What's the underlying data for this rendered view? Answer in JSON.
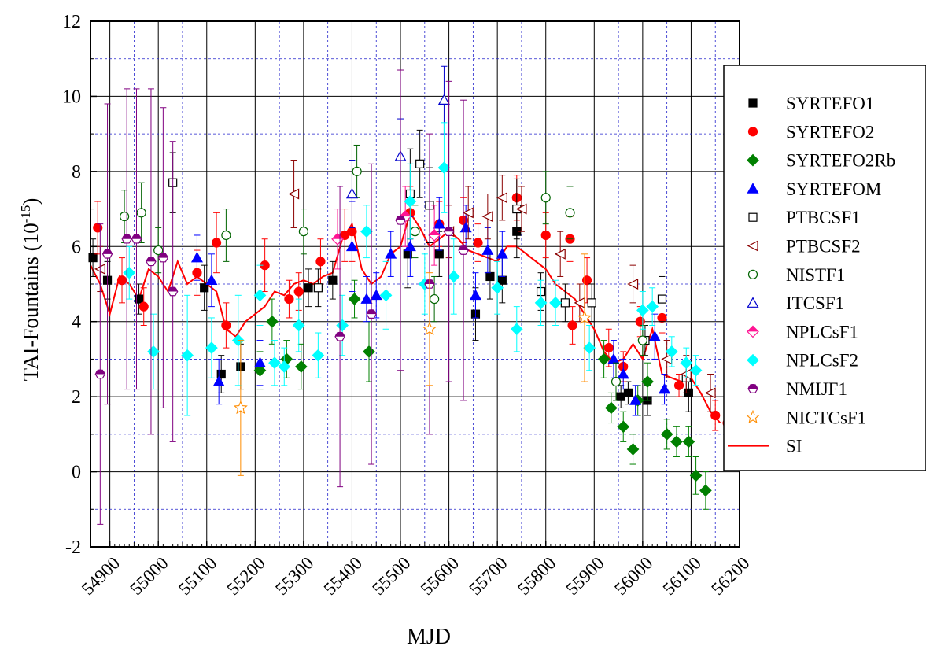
{
  "chart_data": {
    "type": "scatter",
    "xlabel": "MJD",
    "ylabel_main": "TAI-Fountains (10",
    "ylabel_exp": "-15",
    "ylabel_close": ")",
    "xlim": [
      54860,
      56200
    ],
    "ylim": [
      -2,
      12
    ],
    "x_major_ticks": [
      54900,
      55000,
      55100,
      55200,
      55300,
      55400,
      55500,
      55600,
      55700,
      55800,
      55900,
      56000,
      56100,
      56200
    ],
    "x_tick_labels": [
      "54900",
      "55000",
      "55100",
      "55200",
      "55300",
      "55400",
      "55500",
      "55600",
      "55700",
      "55800",
      "55900",
      "56000",
      "56100",
      "56200"
    ],
    "y_major_ticks": [
      -2,
      0,
      2,
      4,
      6,
      8,
      10,
      12
    ],
    "y_tick_labels": [
      "-2",
      "0",
      "2",
      "4",
      "6",
      "8",
      "10",
      "12"
    ],
    "grid": "major solid, minor dashed blue",
    "legend_position": "right",
    "series": [
      {
        "name": "SYRTEFO1",
        "marker": "square-filled",
        "color": "#000000",
        "points": [
          [
            54865,
            5.7,
            0.5
          ],
          [
            54895,
            5.1,
            0.5
          ],
          [
            54960,
            4.6,
            0.4
          ],
          [
            55095,
            4.9,
            0.6
          ],
          [
            55130,
            2.6,
            0.5
          ],
          [
            55170,
            2.8,
            0.6
          ],
          [
            55310,
            4.9,
            0.5
          ],
          [
            55360,
            5.1,
            0.5
          ],
          [
            55515,
            5.8,
            0.9
          ],
          [
            55580,
            5.8,
            0.6
          ],
          [
            55655,
            4.2,
            0.7
          ],
          [
            55685,
            5.2,
            0.6
          ],
          [
            55710,
            5.1,
            0.6
          ],
          [
            55740,
            6.4,
            0.7
          ],
          [
            55955,
            2.0,
            0.3
          ],
          [
            55970,
            2.1,
            0.3
          ],
          [
            56010,
            1.9,
            0.4
          ],
          [
            56095,
            2.1,
            0.5
          ]
        ]
      },
      {
        "name": "SYRTEFO2",
        "marker": "circle-filled",
        "color": "#ff0000",
        "points": [
          [
            54875,
            6.5,
            0.7
          ],
          [
            54925,
            5.1,
            0.6
          ],
          [
            54970,
            4.4,
            0.5
          ],
          [
            55080,
            5.3,
            0.6
          ],
          [
            55120,
            6.1,
            0.8
          ],
          [
            55140,
            3.9,
            0.6
          ],
          [
            55220,
            5.5,
            0.7
          ],
          [
            55270,
            4.6,
            0.5
          ],
          [
            55290,
            4.8,
            0.5
          ],
          [
            55335,
            5.6,
            0.6
          ],
          [
            55385,
            6.3,
            0.7
          ],
          [
            55400,
            6.4,
            0.8
          ],
          [
            55520,
            6.9,
            0.7
          ],
          [
            55580,
            6.6,
            0.6
          ],
          [
            55630,
            6.7,
            0.6
          ],
          [
            55660,
            6.1,
            0.5
          ],
          [
            55740,
            7.3,
            0.6
          ],
          [
            55800,
            6.3,
            0.6
          ],
          [
            55850,
            6.2,
            0.6
          ],
          [
            55855,
            3.9,
            0.5
          ],
          [
            55885,
            5.1,
            0.6
          ],
          [
            55930,
            3.3,
            0.5
          ],
          [
            55960,
            2.8,
            0.4
          ],
          [
            55995,
            4.0,
            0.4
          ],
          [
            56040,
            4.1,
            0.4
          ],
          [
            56075,
            2.3,
            0.3
          ],
          [
            56150,
            1.5,
            0.4
          ],
          [
            56175,
            1.3,
            0.4
          ]
        ]
      },
      {
        "name": "SYRTEFO2Rb",
        "marker": "diamond-filled",
        "color": "#008000",
        "points": [
          [
            55210,
            2.7,
            0.5
          ],
          [
            55235,
            4.0,
            0.6
          ],
          [
            55265,
            3.0,
            0.5
          ],
          [
            55295,
            2.8,
            0.6
          ],
          [
            55405,
            4.6,
            0.5
          ],
          [
            55435,
            3.2,
            0.8
          ],
          [
            55920,
            3.0,
            0.5
          ],
          [
            55935,
            1.7,
            0.4
          ],
          [
            55960,
            1.2,
            0.4
          ],
          [
            55980,
            0.6,
            0.4
          ],
          [
            55990,
            1.9,
            0.4
          ],
          [
            56010,
            2.4,
            0.5
          ],
          [
            56050,
            1.0,
            0.4
          ],
          [
            56070,
            0.8,
            0.4
          ],
          [
            56095,
            0.8,
            0.4
          ],
          [
            56110,
            -0.1,
            0.5
          ],
          [
            56130,
            -0.5,
            0.5
          ]
        ]
      },
      {
        "name": "SYRTEFOM",
        "marker": "triangle-filled",
        "color": "#0000ff",
        "points": [
          [
            55080,
            5.7,
            0.6
          ],
          [
            55110,
            5.1,
            0.7
          ],
          [
            55125,
            2.4,
            0.6
          ],
          [
            55210,
            2.9,
            0.6
          ],
          [
            55400,
            6.0,
            1.2
          ],
          [
            55430,
            4.6,
            0.6
          ],
          [
            55450,
            4.7,
            0.6
          ],
          [
            55480,
            5.8,
            0.6
          ],
          [
            55520,
            6.0,
            0.8
          ],
          [
            55580,
            6.6,
            0.7
          ],
          [
            55635,
            6.5,
            0.6
          ],
          [
            55655,
            4.7,
            0.6
          ],
          [
            55680,
            5.9,
            0.6
          ],
          [
            55710,
            5.8,
            0.6
          ],
          [
            55940,
            3.0,
            0.5
          ],
          [
            55960,
            2.6,
            0.4
          ],
          [
            55985,
            1.9,
            0.4
          ],
          [
            56025,
            3.6,
            0.6
          ],
          [
            56045,
            2.2,
            0.4
          ]
        ]
      },
      {
        "name": "PTBCSF1",
        "marker": "square-open",
        "color": "#000000",
        "points": [
          [
            55030,
            7.7,
            0.8
          ],
          [
            55330,
            4.9,
            0.5
          ],
          [
            55520,
            7.4,
            1.2
          ],
          [
            55540,
            8.2,
            0.9
          ],
          [
            55560,
            7.1,
            1.0
          ],
          [
            55740,
            7.0,
            0.8
          ],
          [
            55790,
            4.8,
            0.5
          ],
          [
            55840,
            4.5,
            0.5
          ],
          [
            55895,
            4.5,
            0.5
          ],
          [
            56005,
            3.5,
            0.4
          ],
          [
            56040,
            4.6,
            0.6
          ],
          [
            56090,
            2.5,
            0.4
          ]
        ]
      },
      {
        "name": "PTBCSF2",
        "marker": "triangle-left-open",
        "color": "#8b0000",
        "points": [
          [
            54880,
            5.4,
            0.6
          ],
          [
            55280,
            7.4,
            0.9
          ],
          [
            55600,
            6.4,
            0.7
          ],
          [
            55640,
            6.9,
            0.7
          ],
          [
            55680,
            6.8,
            0.6
          ],
          [
            55710,
            7.3,
            0.6
          ],
          [
            55750,
            7.0,
            0.6
          ],
          [
            55830,
            5.8,
            0.6
          ],
          [
            55870,
            4.5,
            0.5
          ],
          [
            55980,
            5.0,
            0.5
          ],
          [
            56050,
            3.0,
            0.5
          ],
          [
            56090,
            2.6,
            0.5
          ],
          [
            56140,
            2.1,
            0.5
          ]
        ]
      },
      {
        "name": "NISTF1",
        "marker": "circle-open",
        "color": "#006400",
        "points": [
          [
            54930,
            6.8,
            0.7
          ],
          [
            54965,
            6.9,
            0.8
          ],
          [
            55000,
            5.9,
            0.6
          ],
          [
            55140,
            6.3,
            0.7
          ],
          [
            55300,
            6.4,
            0.6
          ],
          [
            55410,
            8.0,
            0.7
          ],
          [
            55530,
            6.4,
            0.7
          ],
          [
            55570,
            4.6,
            0.6
          ],
          [
            55800,
            7.3,
            0.7
          ],
          [
            55850,
            6.9,
            0.7
          ],
          [
            55945,
            2.4,
            0.5
          ],
          [
            56000,
            3.5,
            0.4
          ]
        ]
      },
      {
        "name": "ITCSF1",
        "marker": "triangle-open",
        "color": "#0000cd",
        "points": [
          [
            55400,
            7.4,
            0.9
          ],
          [
            55500,
            8.4,
            1.0
          ],
          [
            55590,
            9.9,
            0.9
          ]
        ]
      },
      {
        "name": "NPLCsF1",
        "marker": "diamond-half",
        "color": "#ff1493",
        "points": [
          [
            55370,
            6.2,
            0.8
          ],
          [
            55510,
            6.8,
            0.8
          ],
          [
            55570,
            6.3,
            0.8
          ]
        ]
      },
      {
        "name": "NPLCsF2",
        "marker": "diamond-filled",
        "color": "#00ffff",
        "points": [
          [
            54940,
            5.3,
            0.7
          ],
          [
            54990,
            3.2,
            1.0
          ],
          [
            55060,
            3.1,
            1.6
          ],
          [
            55110,
            3.3,
            0.8
          ],
          [
            55165,
            3.5,
            1.2
          ],
          [
            55210,
            4.7,
            0.8
          ],
          [
            55240,
            2.9,
            0.6
          ],
          [
            55260,
            2.8,
            0.5
          ],
          [
            55290,
            3.9,
            0.7
          ],
          [
            55330,
            3.1,
            0.6
          ],
          [
            55380,
            3.9,
            0.8
          ],
          [
            55430,
            6.4,
            0.7
          ],
          [
            55470,
            4.7,
            0.9
          ],
          [
            55520,
            7.2,
            1.0
          ],
          [
            55550,
            5.0,
            0.8
          ],
          [
            55590,
            8.1,
            1.2
          ],
          [
            55610,
            5.2,
            1.0
          ],
          [
            55700,
            4.9,
            0.7
          ],
          [
            55740,
            3.8,
            0.6
          ],
          [
            55790,
            4.5,
            0.6
          ],
          [
            55820,
            4.5,
            0.6
          ],
          [
            55890,
            3.3,
            0.6
          ],
          [
            56000,
            4.3,
            0.5
          ],
          [
            56020,
            4.4,
            0.5
          ],
          [
            56060,
            3.2,
            0.4
          ],
          [
            56090,
            2.9,
            0.4
          ],
          [
            56110,
            2.7,
            0.4
          ]
        ]
      },
      {
        "name": "NMIJF1",
        "marker": "hexagon-half",
        "color": "#800080",
        "points": [
          [
            54880,
            2.6,
            4.0
          ],
          [
            54895,
            5.8,
            4.0
          ],
          [
            54935,
            6.2,
            4.0
          ],
          [
            54955,
            6.2,
            4.0
          ],
          [
            54985,
            5.6,
            4.6
          ],
          [
            55010,
            5.7,
            4.0
          ],
          [
            55030,
            4.8,
            4.0
          ],
          [
            55375,
            3.6,
            4.0
          ],
          [
            55440,
            4.2,
            4.0
          ],
          [
            55500,
            6.7,
            4.0
          ],
          [
            55560,
            5.0,
            4.0
          ],
          [
            55600,
            6.4,
            4.0
          ],
          [
            55630,
            5.9,
            4.0
          ]
        ]
      },
      {
        "name": "NICTCsF1",
        "marker": "star-open",
        "color": "#ff8c00",
        "points": [
          [
            55170,
            1.7,
            1.8
          ],
          [
            55560,
            3.8,
            1.5
          ],
          [
            55880,
            4.1,
            1.7
          ]
        ]
      }
    ],
    "si_line": {
      "name": "SI",
      "color": "#ff0000",
      "x": [
        54860,
        54880,
        54900,
        54920,
        54940,
        54960,
        54980,
        55000,
        55020,
        55040,
        55060,
        55080,
        55100,
        55120,
        55140,
        55160,
        55180,
        55200,
        55220,
        55240,
        55260,
        55280,
        55300,
        55320,
        55340,
        55360,
        55380,
        55400,
        55420,
        55440,
        55460,
        55480,
        55500,
        55520,
        55540,
        55560,
        55580,
        55600,
        55620,
        55640,
        55660,
        55680,
        55700,
        55720,
        55740,
        55760,
        55780,
        55800,
        55820,
        55840,
        55860,
        55880,
        55900,
        55920,
        55940,
        55960,
        55980,
        56000,
        56020,
        56040,
        56060,
        56080,
        56100,
        56120,
        56140,
        56160
      ],
      "y": [
        5.5,
        5.0,
        4.2,
        5.2,
        5.0,
        4.6,
        5.4,
        5.2,
        4.8,
        5.6,
        5.0,
        5.2,
        5.0,
        4.8,
        3.8,
        3.6,
        4.0,
        4.2,
        4.4,
        4.8,
        4.7,
        5.0,
        5.1,
        5.0,
        5.2,
        5.3,
        6.2,
        6.6,
        5.4,
        5.0,
        5.2,
        5.8,
        6.0,
        6.9,
        6.5,
        6.0,
        6.2,
        6.4,
        6.2,
        5.9,
        5.8,
        5.7,
        5.6,
        6.0,
        6.0,
        5.8,
        5.6,
        5.4,
        5.0,
        4.8,
        4.6,
        4.2,
        3.8,
        3.2,
        2.9,
        3.0,
        3.4,
        3.0,
        3.8,
        2.6,
        2.5,
        2.4,
        2.5,
        2.1,
        1.6,
        1.3
      ]
    }
  }
}
